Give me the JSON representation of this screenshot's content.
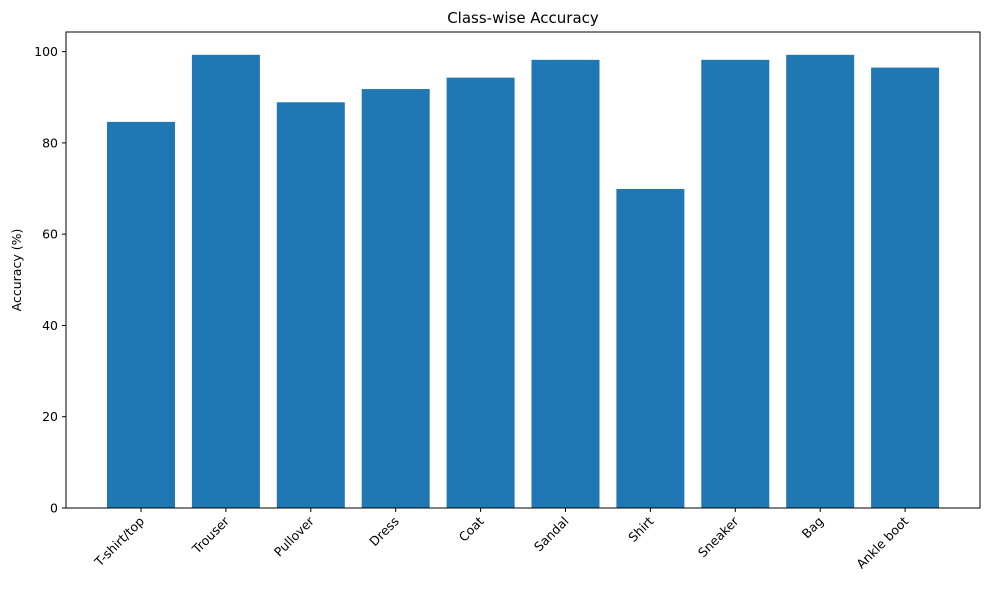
{
  "chart_data": {
    "type": "bar",
    "title": "Class-wise Accuracy",
    "xlabel": "",
    "ylabel": "Accuracy (%)",
    "categories": [
      "T-shirt/top",
      "Trouser",
      "Pullover",
      "Dress",
      "Coat",
      "Sandal",
      "Shirt",
      "Sneaker",
      "Bag",
      "Ankle boot"
    ],
    "values": [
      84.6,
      99.3,
      88.9,
      91.8,
      94.3,
      98.2,
      69.9,
      98.2,
      99.3,
      96.5
    ],
    "ylim": [
      0,
      104.3
    ],
    "yticks": [
      "0",
      "20",
      "40",
      "60",
      "80",
      "100"
    ],
    "bar_color": "#1f77b4",
    "grid": false,
    "legend": "none"
  }
}
